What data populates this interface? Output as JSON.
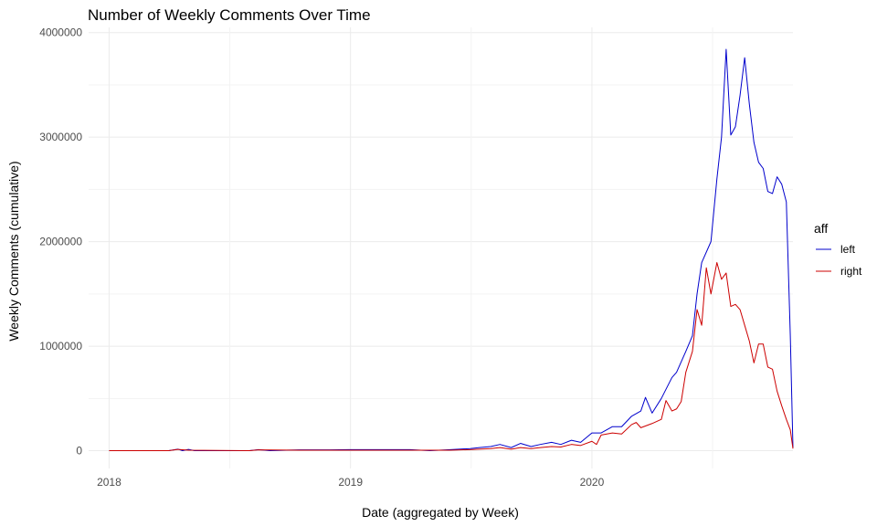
{
  "chart_data": {
    "type": "line",
    "title": "Number of Weekly Comments Over Time",
    "xlabel": "Date (aggregated by Week)",
    "ylabel": "Weekly Comments (cumulative)",
    "x_ticks": [
      "2018",
      "2019",
      "2020"
    ],
    "y_ticks": [
      "0",
      "1000000",
      "2000000",
      "3000000",
      "4000000"
    ],
    "xlim": [
      "2017-12-01",
      "2020-10-31"
    ],
    "ylim": [
      -170000,
      4050000
    ],
    "grid": true,
    "legend": {
      "title": "aff",
      "position": "right"
    },
    "series": [
      {
        "name": "left",
        "color": "#0000cc",
        "points": [
          [
            "2018-01-01",
            0
          ],
          [
            "2018-04-01",
            0
          ],
          [
            "2018-04-15",
            15000
          ],
          [
            "2018-04-22",
            0
          ],
          [
            "2018-05-01",
            12000
          ],
          [
            "2018-05-10",
            0
          ],
          [
            "2018-08-01",
            0
          ],
          [
            "2018-08-15",
            10000
          ],
          [
            "2018-09-01",
            0
          ],
          [
            "2018-10-15",
            8000
          ],
          [
            "2018-12-01",
            8000
          ],
          [
            "2019-01-01",
            10000
          ],
          [
            "2019-03-01",
            10000
          ],
          [
            "2019-04-01",
            10000
          ],
          [
            "2019-05-01",
            0
          ],
          [
            "2019-06-01",
            10000
          ],
          [
            "2019-07-01",
            20000
          ],
          [
            "2019-07-15",
            30000
          ],
          [
            "2019-08-01",
            40000
          ],
          [
            "2019-08-15",
            60000
          ],
          [
            "2019-09-01",
            30000
          ],
          [
            "2019-09-15",
            70000
          ],
          [
            "2019-10-01",
            40000
          ],
          [
            "2019-10-15",
            60000
          ],
          [
            "2019-11-01",
            80000
          ],
          [
            "2019-11-15",
            60000
          ],
          [
            "2019-12-01",
            100000
          ],
          [
            "2019-12-15",
            80000
          ],
          [
            "2020-01-01",
            170000
          ],
          [
            "2020-01-15",
            170000
          ],
          [
            "2020-02-01",
            230000
          ],
          [
            "2020-02-15",
            230000
          ],
          [
            "2020-03-01",
            330000
          ],
          [
            "2020-03-15",
            380000
          ],
          [
            "2020-03-22",
            510000
          ],
          [
            "2020-04-01",
            360000
          ],
          [
            "2020-04-15",
            500000
          ],
          [
            "2020-05-01",
            700000
          ],
          [
            "2020-05-08",
            750000
          ],
          [
            "2020-05-22",
            950000
          ],
          [
            "2020-06-01",
            1100000
          ],
          [
            "2020-06-08",
            1500000
          ],
          [
            "2020-06-15",
            1800000
          ],
          [
            "2020-06-29",
            2000000
          ],
          [
            "2020-07-08",
            2600000
          ],
          [
            "2020-07-15",
            3000000
          ],
          [
            "2020-07-22",
            3840000
          ],
          [
            "2020-07-29",
            3020000
          ],
          [
            "2020-08-05",
            3100000
          ],
          [
            "2020-08-12",
            3400000
          ],
          [
            "2020-08-19",
            3760000
          ],
          [
            "2020-08-26",
            3320000
          ],
          [
            "2020-09-02",
            2950000
          ],
          [
            "2020-09-09",
            2760000
          ],
          [
            "2020-09-16",
            2700000
          ],
          [
            "2020-09-23",
            2480000
          ],
          [
            "2020-09-30",
            2460000
          ],
          [
            "2020-10-07",
            2620000
          ],
          [
            "2020-10-14",
            2550000
          ],
          [
            "2020-10-21",
            2380000
          ],
          [
            "2020-10-27",
            1100000
          ],
          [
            "2020-10-31",
            30000
          ]
        ]
      },
      {
        "name": "right",
        "color": "#cc0000",
        "points": [
          [
            "2018-01-01",
            0
          ],
          [
            "2018-04-01",
            0
          ],
          [
            "2018-04-15",
            12000
          ],
          [
            "2018-05-01",
            5000
          ],
          [
            "2018-08-01",
            0
          ],
          [
            "2018-08-15",
            8000
          ],
          [
            "2018-10-15",
            5000
          ],
          [
            "2018-12-01",
            5000
          ],
          [
            "2019-01-01",
            5000
          ],
          [
            "2019-04-01",
            5000
          ],
          [
            "2019-06-01",
            5000
          ],
          [
            "2019-07-01",
            10000
          ],
          [
            "2019-08-01",
            20000
          ],
          [
            "2019-08-15",
            30000
          ],
          [
            "2019-09-01",
            15000
          ],
          [
            "2019-09-15",
            30000
          ],
          [
            "2019-10-01",
            20000
          ],
          [
            "2019-10-15",
            30000
          ],
          [
            "2019-11-01",
            40000
          ],
          [
            "2019-11-15",
            35000
          ],
          [
            "2019-12-01",
            60000
          ],
          [
            "2019-12-15",
            50000
          ],
          [
            "2020-01-01",
            90000
          ],
          [
            "2020-01-08",
            60000
          ],
          [
            "2020-01-15",
            150000
          ],
          [
            "2020-02-01",
            170000
          ],
          [
            "2020-02-15",
            160000
          ],
          [
            "2020-03-01",
            250000
          ],
          [
            "2020-03-08",
            270000
          ],
          [
            "2020-03-15",
            220000
          ],
          [
            "2020-04-01",
            260000
          ],
          [
            "2020-04-15",
            300000
          ],
          [
            "2020-04-22",
            480000
          ],
          [
            "2020-05-01",
            380000
          ],
          [
            "2020-05-08",
            400000
          ],
          [
            "2020-05-15",
            470000
          ],
          [
            "2020-05-22",
            750000
          ],
          [
            "2020-06-01",
            950000
          ],
          [
            "2020-06-08",
            1350000
          ],
          [
            "2020-06-15",
            1200000
          ],
          [
            "2020-06-22",
            1750000
          ],
          [
            "2020-06-29",
            1500000
          ],
          [
            "2020-07-08",
            1800000
          ],
          [
            "2020-07-15",
            1640000
          ],
          [
            "2020-07-22",
            1700000
          ],
          [
            "2020-07-29",
            1380000
          ],
          [
            "2020-08-05",
            1400000
          ],
          [
            "2020-08-12",
            1350000
          ],
          [
            "2020-08-19",
            1200000
          ],
          [
            "2020-08-26",
            1050000
          ],
          [
            "2020-09-02",
            840000
          ],
          [
            "2020-09-09",
            1020000
          ],
          [
            "2020-09-16",
            1020000
          ],
          [
            "2020-09-23",
            800000
          ],
          [
            "2020-09-30",
            780000
          ],
          [
            "2020-10-07",
            570000
          ],
          [
            "2020-10-14",
            430000
          ],
          [
            "2020-10-21",
            300000
          ],
          [
            "2020-10-27",
            200000
          ],
          [
            "2020-10-31",
            20000
          ]
        ]
      }
    ]
  }
}
